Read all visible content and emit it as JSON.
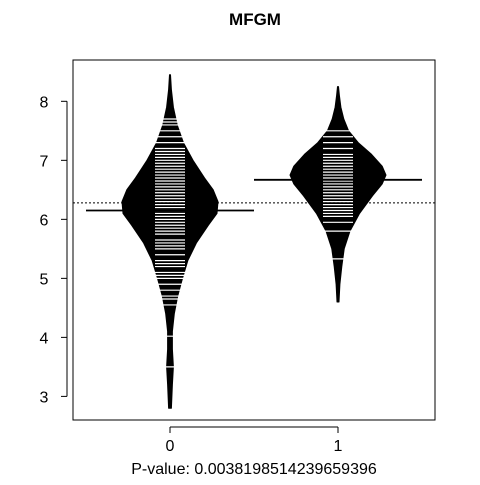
{
  "chart_data": {
    "type": "beanplot",
    "title": "MFGM",
    "xlabel": "P-value: 0.0038198514239659396",
    "ylabel": "",
    "categories": [
      "0",
      "1"
    ],
    "x_ticks": [
      "0",
      "1"
    ],
    "y_ticks": [
      3,
      4,
      5,
      6,
      7,
      8
    ],
    "ylim": [
      2.6,
      8.7
    ],
    "overall_mean": 6.28,
    "grid": false,
    "legend": "none",
    "groups": [
      {
        "category": "0",
        "mean": 6.15,
        "range": [
          2.8,
          8.45
        ],
        "density": [
          [
            2.8,
            0.03
          ],
          [
            3.2,
            0.05
          ],
          [
            3.5,
            0.07
          ],
          [
            3.8,
            0.05
          ],
          [
            4.1,
            0.05
          ],
          [
            4.4,
            0.09
          ],
          [
            4.7,
            0.16
          ],
          [
            5.0,
            0.26
          ],
          [
            5.3,
            0.37
          ],
          [
            5.6,
            0.55
          ],
          [
            5.9,
            0.8
          ],
          [
            6.1,
            0.98
          ],
          [
            6.3,
            1.0
          ],
          [
            6.5,
            0.9
          ],
          [
            6.7,
            0.72
          ],
          [
            7.0,
            0.48
          ],
          [
            7.3,
            0.28
          ],
          [
            7.6,
            0.15
          ],
          [
            7.9,
            0.07
          ],
          [
            8.2,
            0.03
          ],
          [
            8.45,
            0.01
          ]
        ],
        "observations": [
          3.5,
          4.02,
          4.55,
          4.65,
          4.7,
          4.8,
          4.9,
          5.0,
          5.05,
          5.1,
          5.2,
          5.25,
          5.3,
          5.4,
          5.5,
          5.55,
          5.6,
          5.65,
          5.75,
          5.8,
          5.85,
          5.9,
          5.95,
          6.0,
          6.05,
          6.1,
          6.15,
          6.2,
          6.25,
          6.3,
          6.35,
          6.4,
          6.45,
          6.5,
          6.55,
          6.6,
          6.65,
          6.7,
          6.75,
          6.8,
          6.85,
          6.9,
          6.95,
          7.0,
          7.05,
          7.1,
          7.15,
          7.2,
          7.3,
          7.4,
          7.5,
          7.6,
          7.65,
          7.7
        ]
      },
      {
        "category": "1",
        "mean": 6.67,
        "range": [
          4.6,
          8.25
        ],
        "density": [
          [
            4.6,
            0.02
          ],
          [
            4.9,
            0.04
          ],
          [
            5.2,
            0.08
          ],
          [
            5.5,
            0.13
          ],
          [
            5.8,
            0.25
          ],
          [
            6.1,
            0.45
          ],
          [
            6.4,
            0.72
          ],
          [
            6.6,
            0.92
          ],
          [
            6.75,
            1.0
          ],
          [
            6.9,
            0.92
          ],
          [
            7.1,
            0.7
          ],
          [
            7.3,
            0.42
          ],
          [
            7.5,
            0.22
          ],
          [
            7.7,
            0.12
          ],
          [
            7.9,
            0.06
          ],
          [
            8.1,
            0.03
          ],
          [
            8.25,
            0.01
          ]
        ],
        "observations": [
          5.33,
          5.8,
          5.95,
          6.05,
          6.1,
          6.15,
          6.2,
          6.25,
          6.3,
          6.35,
          6.4,
          6.45,
          6.5,
          6.55,
          6.6,
          6.65,
          6.7,
          6.75,
          6.8,
          6.85,
          6.9,
          6.95,
          7.0,
          7.05,
          7.1,
          7.2,
          7.3,
          7.4,
          7.5
        ]
      }
    ]
  }
}
